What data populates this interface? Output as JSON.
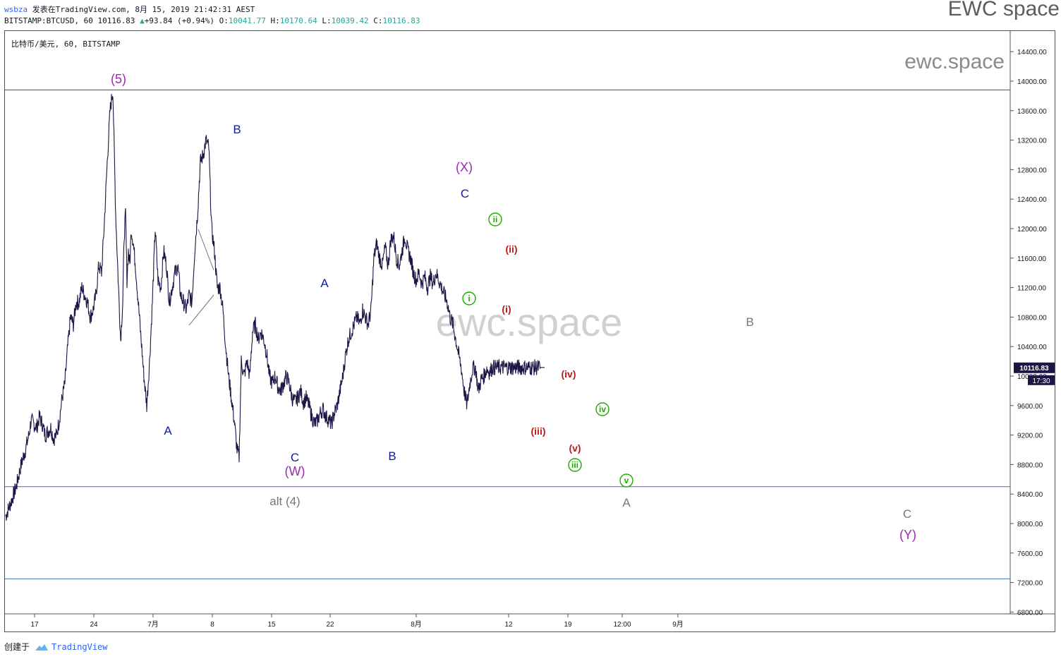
{
  "header": {
    "user": "wsbza",
    "published": "发表在TradingView.com, 8月 15, 2019 21:42:31 AEST",
    "symbol_line": "BITSTAMP:BTCUSD, 60 10116.83",
    "change": "+93.84 (+0.94%)",
    "o_label": "O:",
    "o_value": "10041.77",
    "h_label": "H:",
    "h_value": "10170.64",
    "l_label": "L:",
    "l_value": "10039.42",
    "c_label": "C:",
    "c_value": "10116.83"
  },
  "brand": "EWC space",
  "footer": {
    "created": "创建于",
    "logo_text": "TradingView"
  },
  "chart_data": {
    "type": "line",
    "title": "比特币/美元, 60, BITSTAMP",
    "watermark_center": "ewc.space",
    "watermark_corner": "ewc.space",
    "x_ticks": [
      "17",
      "24",
      "7月",
      "8",
      "15",
      "22",
      "8月",
      "12",
      "19",
      "12:00",
      "9月"
    ],
    "y_ticks": [
      6800,
      7200,
      7600,
      8000,
      8400,
      8800,
      9200,
      9600,
      10000,
      10400,
      10800,
      11200,
      11600,
      12000,
      12400,
      12800,
      13200,
      13600,
      14000,
      14400
    ],
    "y_tick_labels": [
      "6800.00",
      "7200.00",
      "7600.00",
      "8000.00",
      "8400.00",
      "8800.00",
      "9200.00",
      "9600.00",
      "10000.00",
      "10400.00",
      "10800.00",
      "11200.00",
      "11600.00",
      "12000.00",
      "12400.00",
      "12800.00",
      "13200.00",
      "13600.00",
      "14000.00",
      "14400.00"
    ],
    "ylim": [
      6800,
      14600
    ],
    "last_price": 10116.83,
    "last_price_label": "10116.83",
    "countdown": "17:30",
    "horizontal_lines": [
      13880,
      8500,
      7250
    ],
    "series": [
      {
        "color": "#1e1446",
        "x": [
          0,
          8,
          15,
          22,
          28,
          33,
          36,
          40,
          44,
          48,
          52,
          56,
          60,
          64,
          68,
          72,
          76,
          80,
          84,
          88,
          92,
          96,
          100,
          104,
          108,
          112,
          116,
          120,
          124,
          128,
          132,
          136,
          140,
          144,
          148,
          152,
          156,
          160,
          163,
          166,
          168,
          170,
          172,
          174,
          176,
          178,
          181,
          184,
          188,
          192,
          196,
          200,
          204,
          208,
          212,
          216,
          220,
          224,
          228,
          232,
          236,
          240,
          244,
          248,
          252,
          256,
          260,
          264,
          268,
          272,
          276,
          280,
          284,
          288,
          292,
          296,
          300,
          304,
          308,
          312,
          316,
          320,
          324,
          328,
          331,
          334,
          338,
          342,
          346,
          350,
          354,
          358,
          362,
          366,
          370,
          374,
          378,
          382,
          386,
          390,
          394,
          398,
          402,
          406,
          410,
          414,
          418,
          422,
          426,
          430,
          434,
          438,
          442,
          446,
          450,
          454,
          458,
          462,
          466,
          470,
          474,
          478,
          482,
          486,
          490,
          494,
          498,
          502,
          506,
          510,
          514,
          518,
          522,
          526,
          530,
          534,
          538,
          542,
          546,
          550,
          554,
          558,
          562,
          566,
          570,
          574,
          578,
          582,
          586,
          590,
          594,
          598,
          602,
          606,
          610,
          614,
          618,
          622,
          626,
          630,
          634,
          638,
          642,
          646,
          650,
          654,
          658,
          662,
          666,
          670,
          674,
          678,
          682,
          686,
          690,
          694,
          698,
          702,
          706,
          710,
          714,
          718,
          722,
          726,
          730,
          734,
          738,
          742,
          746,
          750,
          754,
          758,
          760,
          762,
          764
        ],
        "values": [
          8100,
          8300,
          8500,
          8800,
          9000,
          9200,
          9400,
          9350,
          9300,
          9450,
          9350,
          9200,
          9250,
          9300,
          9150,
          9200,
          9400,
          9700,
          9900,
          10400,
          10800,
          10700,
          11000,
          11000,
          11200,
          11100,
          11000,
          10800,
          10900,
          11100,
          11500,
          11400,
          12100,
          12900,
          13600,
          13880,
          12200,
          11200,
          10500,
          11000,
          11900,
          12200,
          11300,
          11700,
          11500,
          12000,
          11800,
          11500,
          11000,
          10500,
          10000,
          9600,
          10200,
          11000,
          12000,
          11300,
          11200,
          11700,
          11500,
          11000,
          11200,
          11400,
          11500,
          11100,
          11000,
          10900,
          11100,
          11000,
          11700,
          12200,
          12900,
          13000,
          13200,
          13100,
          12000,
          11700,
          11200,
          11200,
          10900,
          10400,
          10000,
          9700,
          9400,
          9000,
          8900,
          10200,
          10000,
          10200,
          10000,
          10600,
          10700,
          10500,
          10600,
          10500,
          10300,
          10000,
          9900,
          10000,
          9850,
          9800,
          9900,
          10000,
          9900,
          9700,
          9650,
          9700,
          9800,
          9650,
          9700,
          9600,
          9450,
          9350,
          9400,
          9500,
          9550,
          9450,
          9400,
          9350,
          9500,
          9600,
          9800,
          10000,
          10300,
          10500,
          10600,
          10700,
          10800,
          10700,
          10900,
          10800,
          10700,
          10900,
          11600,
          11800,
          11600,
          11500,
          11750,
          11500,
          11850,
          11900,
          11600,
          11500,
          11700,
          11900,
          11700,
          11600,
          11400,
          11300,
          11400,
          11250,
          11350,
          11200,
          11350,
          11250,
          11400,
          11300,
          11200,
          11100,
          11000,
          10800,
          10700,
          10500,
          10300,
          10100,
          9800,
          9600,
          9900,
          10100,
          10116.83,
          9800,
          9950,
          10000,
          10100,
          10050,
          10116.83,
          10116.83,
          10116.83,
          10116.83,
          10116.83,
          10116.83,
          10116.83,
          10116.83,
          10116.83,
          10116.83,
          10116.83,
          10116.83,
          10116.83,
          10116.83,
          10116.83,
          10116.83,
          10116.83,
          10116.83,
          10116.83,
          10116.83,
          10116.83
        ]
      }
    ],
    "wave_labels": [
      {
        "text": "(5)",
        "color": "#9c27b0"
      },
      {
        "text": "A",
        "color": "#0d1b9c"
      },
      {
        "text": "B",
        "color": "#0d1b9c"
      },
      {
        "text": "C",
        "color": "#0d1b9c"
      },
      {
        "text": "(W)",
        "color": "#9c27b0"
      },
      {
        "text": "alt (4)",
        "color": "#777777"
      },
      {
        "text": "A",
        "color": "#0d1b9c"
      },
      {
        "text": "B",
        "color": "#0d1b9c"
      },
      {
        "text": "(X)",
        "color": "#9c27b0"
      },
      {
        "text": "C",
        "color": "#0d1b9c"
      },
      {
        "text": "(i)",
        "color": "#b71c1c"
      },
      {
        "text": "(ii)",
        "color": "#b71c1c"
      },
      {
        "text": "(iii)",
        "color": "#b71c1c"
      },
      {
        "text": "(iv)",
        "color": "#b71c1c"
      },
      {
        "text": "(v)",
        "color": "#b71c1c"
      },
      {
        "text": "i",
        "color": "#1faa00",
        "circle": true
      },
      {
        "text": "ii",
        "color": "#1faa00",
        "circle": true
      },
      {
        "text": "iii",
        "color": "#1faa00",
        "circle": true
      },
      {
        "text": "iv",
        "color": "#1faa00",
        "circle": true
      },
      {
        "text": "v",
        "color": "#1faa00",
        "circle": true
      },
      {
        "text": "A",
        "color": "#777777"
      },
      {
        "text": "B",
        "color": "#777777"
      },
      {
        "text": "C",
        "color": "#777777"
      },
      {
        "text": "(Y)",
        "color": "#9c27b0"
      }
    ]
  }
}
